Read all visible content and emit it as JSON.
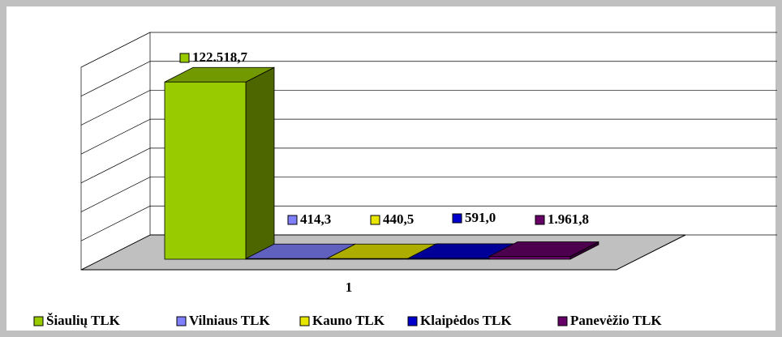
{
  "chart_data": {
    "type": "bar3d",
    "categories": [
      "1"
    ],
    "series": [
      {
        "name": "Šiaulių TLK",
        "color": "#99cc00",
        "values": [
          122518.7
        ],
        "value_labels": [
          "122.518,7"
        ]
      },
      {
        "name": "Vilniaus TLK",
        "color": "#8080ff",
        "values": [
          414.3
        ],
        "value_labels": [
          "414,3"
        ]
      },
      {
        "name": "Kauno TLK",
        "color": "#e6e600",
        "values": [
          440.5
        ],
        "value_labels": [
          "440,5"
        ]
      },
      {
        "name": "Klaipėdos TLK",
        "color": "#0000cc",
        "values": [
          591.0
        ],
        "value_labels": [
          "591,0"
        ]
      },
      {
        "name": "Panevėžio TLK",
        "color": "#660066",
        "values": [
          1961.8
        ],
        "value_labels": [
          "1.961,8"
        ]
      }
    ],
    "ylim": [
      0,
      140000
    ],
    "yticks": [
      0,
      20000,
      40000,
      60000,
      80000,
      100000,
      120000,
      140000
    ],
    "grid": true,
    "legend": "bottom"
  }
}
